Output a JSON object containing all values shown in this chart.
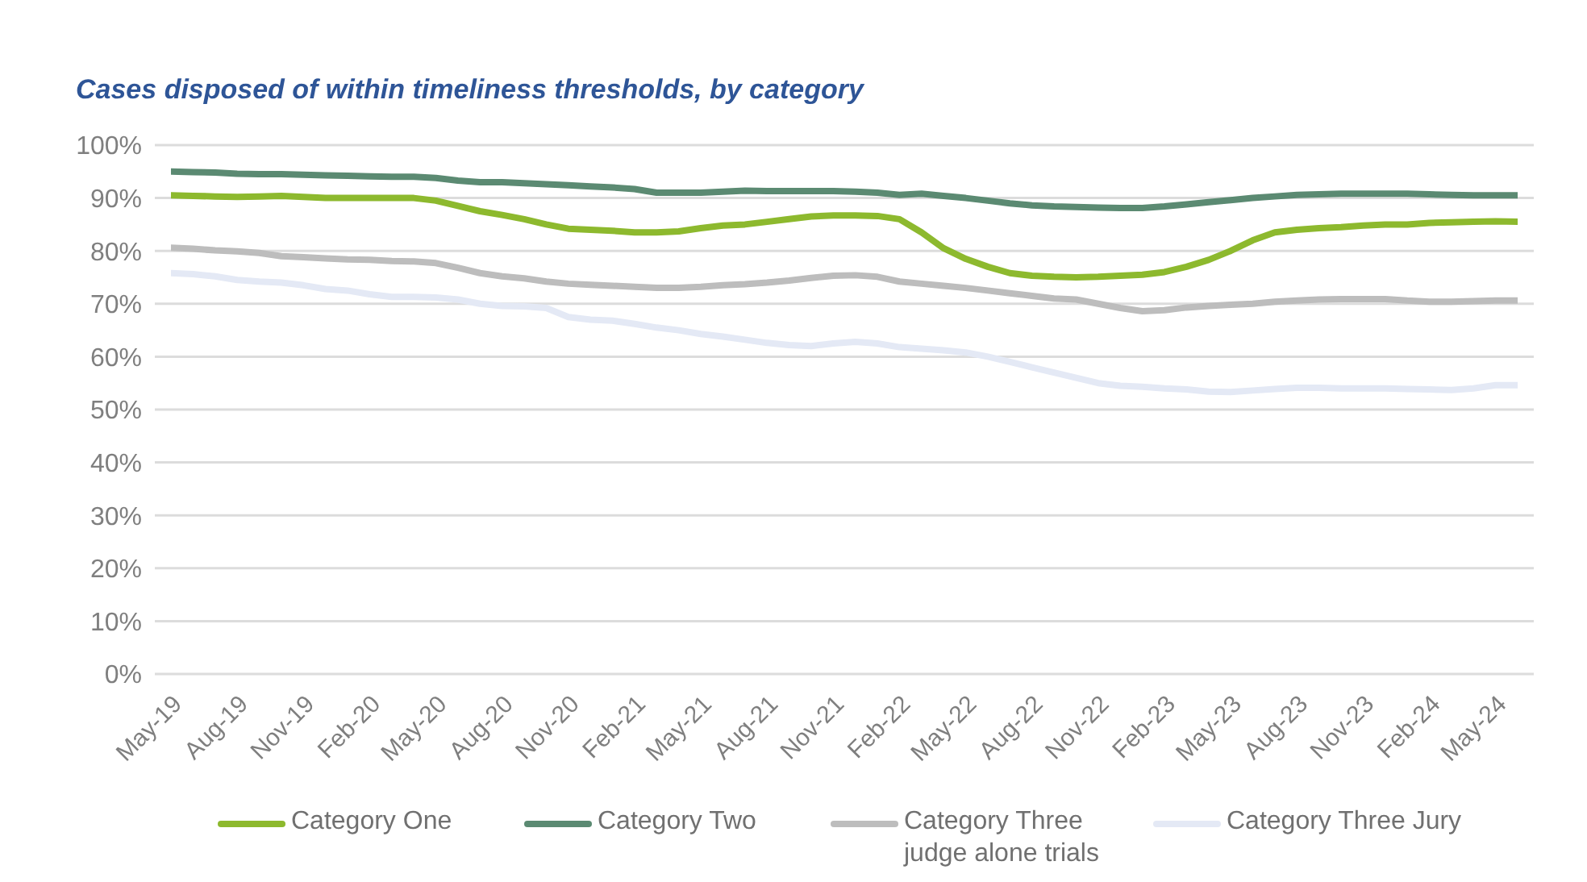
{
  "chart_data": {
    "type": "line",
    "title": "Cases disposed of within timeliness thresholds, by category",
    "categories": [
      "May-19",
      null,
      null,
      "Aug-19",
      null,
      null,
      "Nov-19",
      null,
      null,
      "Feb-20",
      null,
      null,
      "May-20",
      null,
      null,
      "Aug-20",
      null,
      null,
      "Nov-20",
      null,
      null,
      "Feb-21",
      null,
      null,
      "May-21",
      null,
      null,
      "Aug-21",
      null,
      null,
      "Nov-21",
      null,
      null,
      "Feb-22",
      null,
      null,
      "May-22",
      null,
      null,
      "Aug-22",
      null,
      null,
      "Nov-22",
      null,
      null,
      "Feb-23",
      null,
      null,
      "May-23",
      null,
      null,
      "Aug-23",
      null,
      null,
      "Nov-23",
      null,
      null,
      "Feb-24",
      null,
      null,
      "May-24",
      null
    ],
    "series": [
      {
        "name": "Category One",
        "color": "#8db92e",
        "values": [
          90.5,
          90.4,
          90.3,
          90.2,
          90.3,
          90.4,
          90.2,
          90,
          90,
          90,
          90,
          90,
          89.5,
          88.5,
          87.5,
          86.8,
          86,
          85,
          84.2,
          84,
          83.8,
          83.5,
          83.5,
          83.7,
          84.3,
          84.8,
          85,
          85.5,
          86,
          86.5,
          86.7,
          86.7,
          86.6,
          86,
          83.5,
          80.5,
          78.5,
          77,
          75.8,
          75.3,
          75.1,
          75,
          75.1,
          75.3,
          75.5,
          76,
          77,
          78.3,
          80,
          82,
          83.5,
          84,
          84.3,
          84.5,
          84.8,
          85,
          85,
          85.3,
          85.4,
          85.5,
          85.6,
          85.5
        ]
      },
      {
        "name": "Category Two",
        "color": "#5b8a72",
        "values": [
          95,
          94.9,
          94.8,
          94.6,
          94.5,
          94.5,
          94.4,
          94.3,
          94.2,
          94.1,
          94,
          94,
          93.8,
          93.3,
          93,
          93,
          92.8,
          92.6,
          92.4,
          92.2,
          92,
          91.7,
          91,
          91,
          91,
          91.2,
          91.4,
          91.3,
          91.3,
          91.3,
          91.3,
          91.2,
          91,
          90.6,
          90.8,
          90.4,
          90,
          89.5,
          89,
          88.6,
          88.4,
          88.3,
          88.2,
          88.1,
          88.1,
          88.4,
          88.8,
          89.2,
          89.6,
          90,
          90.3,
          90.6,
          90.7,
          90.8,
          90.8,
          90.8,
          90.8,
          90.7,
          90.6,
          90.5,
          90.5,
          90.5
        ]
      },
      {
        "name": "Category Three judge alone trials",
        "color": "#bdbdbd",
        "values": [
          80.6,
          80.4,
          80.1,
          79.9,
          79.6,
          79,
          78.8,
          78.6,
          78.4,
          78.3,
          78.1,
          78,
          77.7,
          76.8,
          75.8,
          75.2,
          74.8,
          74.2,
          73.8,
          73.6,
          73.4,
          73.2,
          73,
          73,
          73.2,
          73.5,
          73.7,
          74,
          74.4,
          74.9,
          75.3,
          75.4,
          75.1,
          74.2,
          73.8,
          73.4,
          73,
          72.5,
          72,
          71.5,
          71,
          70.8,
          70,
          69.2,
          68.6,
          68.8,
          69.3,
          69.6,
          69.8,
          70,
          70.4,
          70.6,
          70.8,
          70.9,
          70.9,
          70.9,
          70.6,
          70.4,
          70.4,
          70.5,
          70.6,
          70.6
        ]
      },
      {
        "name": "Category Three Jury",
        "color": "#e4e9f5",
        "values": [
          75.8,
          75.6,
          75.2,
          74.5,
          74.2,
          74,
          73.5,
          72.8,
          72.5,
          71.8,
          71.3,
          71.3,
          71.2,
          70.8,
          70,
          69.6,
          69.5,
          69.2,
          67.5,
          67,
          66.8,
          66.2,
          65.5,
          65,
          64.3,
          63.8,
          63.2,
          62.6,
          62.2,
          62,
          62.5,
          62.8,
          62.5,
          61.8,
          61.5,
          61.2,
          60.8,
          60,
          59,
          58,
          57,
          56,
          55,
          54.5,
          54.3,
          54,
          53.8,
          53.4,
          53.3,
          53.6,
          53.9,
          54.1,
          54.1,
          54,
          54,
          54,
          53.9,
          53.8,
          53.7,
          54,
          54.6,
          54.6
        ]
      }
    ],
    "ylim": [
      0,
      100
    ],
    "yticks": [
      {
        "value": 0,
        "label": "0%"
      },
      {
        "value": 10,
        "label": "10%"
      },
      {
        "value": 20,
        "label": "20%"
      },
      {
        "value": 30,
        "label": "30%"
      },
      {
        "value": 40,
        "label": "40%"
      },
      {
        "value": 50,
        "label": "50%"
      },
      {
        "value": 60,
        "label": "60%"
      },
      {
        "value": 70,
        "label": "70%"
      },
      {
        "value": 80,
        "label": "80%"
      },
      {
        "value": 90,
        "label": "90%"
      },
      {
        "value": 100,
        "label": "100%"
      }
    ],
    "grid": "y",
    "legend": "bottom",
    "marker": "none",
    "line_style": "solid"
  }
}
